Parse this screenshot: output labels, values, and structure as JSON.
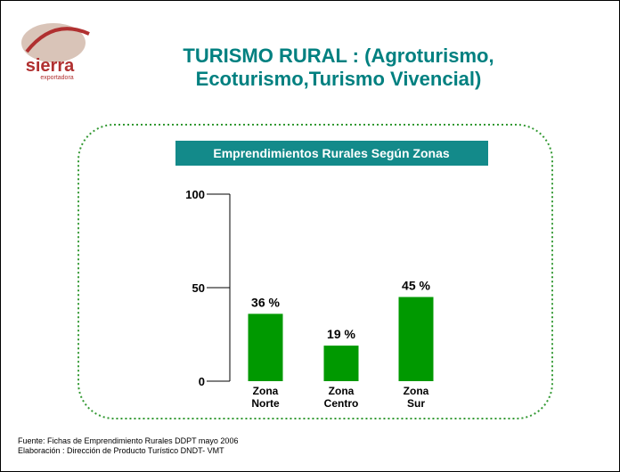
{
  "header": {
    "logo_text": "sierra",
    "logo_subtext": "exportadora",
    "title_line1": "TURISMO RURAL : (Agroturismo,",
    "title_line2": "Ecoturismo,Turismo Vivencial)"
  },
  "chart_data": {
    "type": "bar",
    "title": "Emprendimientos Rurales Según Zonas",
    "categories": [
      "Zona Norte",
      "Zona Centro",
      "Zona Sur"
    ],
    "values": [
      36,
      19,
      45
    ],
    "value_labels": [
      "36 %",
      "19 %",
      "45 %"
    ],
    "color": "#009900",
    "ylim": [
      0,
      100
    ],
    "yticks": [
      0,
      50,
      100
    ],
    "grid": false
  },
  "footer": {
    "line1": "Fuente: Fichas de Emprendimiento  Rurales DDPT mayo 2006",
    "line2": "Elaboración : Dirección de Producto Turístico  DNDT- VMT"
  }
}
